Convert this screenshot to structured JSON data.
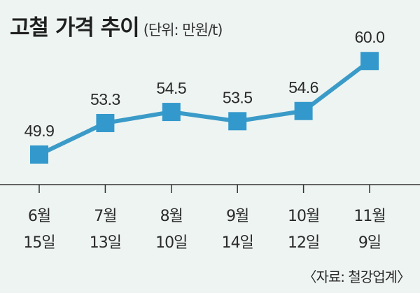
{
  "title": "고철 가격 추이",
  "unit": "(단위: 만원/t)",
  "source": "〈자료: 철강업계〉",
  "colors": {
    "line": "#3b9bc8",
    "marker": "#3399cc",
    "axis": "#333333",
    "background": "#eef4f2"
  },
  "chart_data": {
    "type": "line",
    "title": "고철 가격 추이",
    "categories": [
      [
        "6월",
        "15일"
      ],
      [
        "7월",
        "13일"
      ],
      [
        "8월",
        "10일"
      ],
      [
        "9월",
        "14일"
      ],
      [
        "10월",
        "12일"
      ],
      [
        "11월",
        "9일"
      ]
    ],
    "series": [
      {
        "values": [
          49.9,
          53.3,
          54.5,
          53.5,
          54.6,
          60.0
        ]
      }
    ],
    "value_labels": [
      "49.9",
      "53.3",
      "54.5",
      "53.5",
      "54.6",
      "60.0"
    ],
    "marker": "square",
    "ylim": [
      43,
      61
    ],
    "grid": false,
    "legend": "none"
  }
}
